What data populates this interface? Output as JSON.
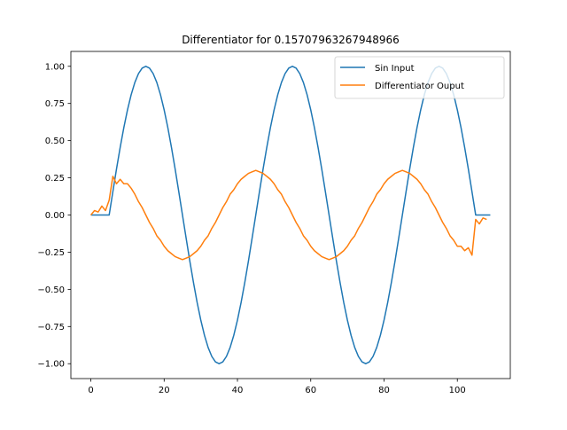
{
  "chart_data": {
    "type": "line",
    "title": "Differentiator for 0.15707963267948966",
    "xlabel": "",
    "ylabel": "",
    "xlim": [
      -5.45,
      114.45
    ],
    "ylim": [
      -1.1,
      1.1
    ],
    "xticks": [
      0,
      20,
      40,
      60,
      80,
      100
    ],
    "yticks": [
      1.0,
      0.75,
      0.5,
      0.25,
      0.0,
      -0.25,
      -0.5,
      -0.75,
      -1.0
    ],
    "ytick_labels": [
      "1.00",
      "0.75",
      "0.50",
      "0.25",
      "0.00",
      "−0.25",
      "−0.50",
      "−0.75",
      "−1.00"
    ],
    "grid": false,
    "legend_position": "top-right",
    "series_colors": [
      "#1f77b4",
      "#ff7f0e"
    ],
    "series": [
      {
        "name": "Sin Input",
        "values": [
          0,
          0,
          0,
          0,
          0,
          0,
          0.156,
          0.309,
          0.454,
          0.588,
          0.707,
          0.809,
          0.891,
          0.951,
          0.988,
          1.0,
          0.988,
          0.951,
          0.891,
          0.809,
          0.707,
          0.588,
          0.454,
          0.309,
          0.156,
          0.0,
          -0.156,
          -0.309,
          -0.454,
          -0.588,
          -0.707,
          -0.809,
          -0.891,
          -0.951,
          -0.988,
          -1.0,
          -0.988,
          -0.951,
          -0.891,
          -0.809,
          -0.707,
          -0.588,
          -0.454,
          -0.309,
          -0.156,
          0.0,
          0.156,
          0.309,
          0.454,
          0.588,
          0.707,
          0.809,
          0.891,
          0.951,
          0.988,
          1.0,
          0.988,
          0.951,
          0.891,
          0.809,
          0.707,
          0.588,
          0.454,
          0.309,
          0.156,
          0.0,
          -0.156,
          -0.309,
          -0.454,
          -0.588,
          -0.707,
          -0.809,
          -0.891,
          -0.951,
          -0.988,
          -1.0,
          -0.988,
          -0.951,
          -0.891,
          -0.809,
          -0.707,
          -0.588,
          -0.454,
          -0.309,
          -0.156,
          0.0,
          0.156,
          0.309,
          0.454,
          0.588,
          0.707,
          0.809,
          0.891,
          0.951,
          0.988,
          1.0,
          0.988,
          0.951,
          0.891,
          0.809,
          0.707,
          0.588,
          0.454,
          0.309,
          0.156,
          0,
          0,
          0,
          0,
          0
        ]
      },
      {
        "name": "Differentiator Ouput",
        "values": [
          0,
          0.03,
          0.02,
          0.06,
          0.03,
          0.1,
          0.26,
          0.21,
          0.24,
          0.21,
          0.21,
          0.18,
          0.14,
          0.09,
          0.05,
          0.0,
          -0.05,
          -0.09,
          -0.14,
          -0.17,
          -0.21,
          -0.24,
          -0.26,
          -0.28,
          -0.29,
          -0.3,
          -0.29,
          -0.28,
          -0.26,
          -0.24,
          -0.21,
          -0.17,
          -0.14,
          -0.09,
          -0.05,
          0.0,
          0.05,
          0.09,
          0.14,
          0.17,
          0.21,
          0.24,
          0.26,
          0.28,
          0.29,
          0.3,
          0.29,
          0.28,
          0.26,
          0.24,
          0.21,
          0.17,
          0.14,
          0.09,
          0.05,
          0.0,
          -0.05,
          -0.09,
          -0.14,
          -0.17,
          -0.21,
          -0.24,
          -0.26,
          -0.28,
          -0.29,
          -0.3,
          -0.29,
          -0.28,
          -0.26,
          -0.24,
          -0.21,
          -0.17,
          -0.14,
          -0.09,
          -0.05,
          0.0,
          0.05,
          0.09,
          0.14,
          0.17,
          0.21,
          0.24,
          0.26,
          0.28,
          0.29,
          0.3,
          0.29,
          0.28,
          0.26,
          0.24,
          0.21,
          0.17,
          0.14,
          0.09,
          0.05,
          0.0,
          -0.05,
          -0.09,
          -0.14,
          -0.17,
          -0.21,
          -0.21,
          -0.24,
          -0.22,
          -0.27,
          -0.03,
          -0.06,
          -0.02,
          -0.03
        ]
      }
    ]
  }
}
